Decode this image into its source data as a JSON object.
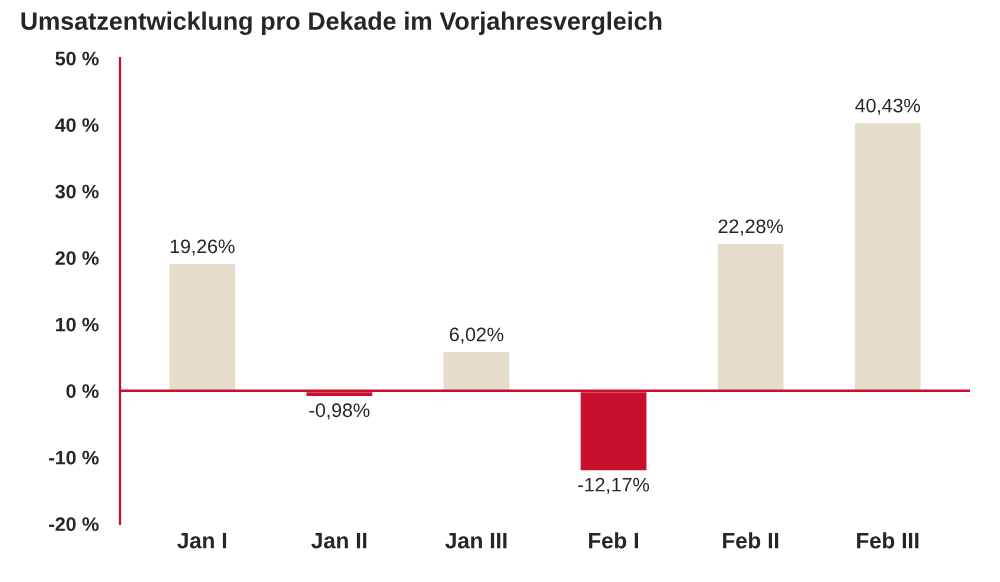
{
  "chart_data": {
    "type": "bar",
    "title": "Umsatzentwicklung pro Dekade im Vorjahresvergleich",
    "categories": [
      "Jan I",
      "Jan II",
      "Jan III",
      "Feb I",
      "Feb II",
      "Feb III"
    ],
    "values": [
      19.26,
      -0.98,
      6.02,
      -12.17,
      22.28,
      40.43
    ],
    "colors": [
      "#e6dccb",
      "#c8102e",
      "#e6dccb",
      "#c8102e",
      "#e6dccb",
      "#e6dccb"
    ],
    "value_labels": [
      "19,26%",
      "-0,98%",
      "6,02%",
      "-12,17%",
      "22,28%",
      "40,43%"
    ],
    "ylim": [
      -20,
      50
    ],
    "yticks": [
      {
        "value": -20,
        "label": "-20 %"
      },
      {
        "value": -10,
        "label": "-10 %"
      },
      {
        "value": 0,
        "label": "0 %"
      },
      {
        "value": 10,
        "label": "10 %"
      },
      {
        "value": 20,
        "label": "20 %"
      },
      {
        "value": 30,
        "label": "30 %"
      },
      {
        "value": 40,
        "label": "40 %"
      },
      {
        "value": 50,
        "label": "50 %"
      }
    ],
    "ref_lines": [
      {
        "axis": "y",
        "value": 0,
        "color": "#c8102e"
      }
    ],
    "grid": false,
    "legend": false
  }
}
